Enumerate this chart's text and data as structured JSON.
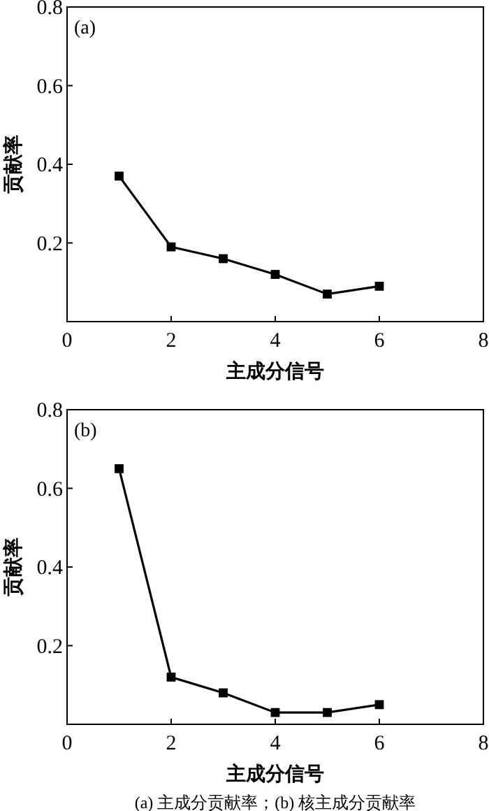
{
  "chart_data": [
    {
      "type": "line",
      "xlabel": "主成分信号",
      "ylabel": "贡献率",
      "annotations": [
        "(a)"
      ],
      "marker": "square",
      "line_style": "solid",
      "grid": false,
      "xlim": [
        0,
        8
      ],
      "xticks": [
        0,
        2,
        4,
        6,
        8
      ],
      "ylim": [
        0,
        0.8
      ],
      "yticks": [
        {
          "value": 0,
          "label": null
        },
        0.2,
        0.4,
        0.6,
        0.8
      ],
      "x": [
        1,
        2,
        3,
        4,
        5,
        6
      ],
      "series": [
        {
          "color": "#000000",
          "values": [
            0.37,
            0.19,
            0.16,
            0.12,
            0.07,
            0.09
          ]
        }
      ]
    },
    {
      "type": "line",
      "xlabel": "主成分信号",
      "ylabel": "贡献率",
      "annotations": [
        "(b)",
        "(a) 主成分贡献率；(b) 核主成分贡献率"
      ],
      "marker": "square",
      "line_style": "solid",
      "grid": false,
      "xlim": [
        0,
        8
      ],
      "xticks": [
        0,
        2,
        4,
        6,
        8
      ],
      "ylim": [
        0,
        0.8
      ],
      "yticks": [
        {
          "value": 0,
          "label": null
        },
        0.2,
        0.4,
        0.6,
        0.8
      ],
      "x": [
        1,
        2,
        3,
        4,
        5,
        6
      ],
      "series": [
        {
          "color": "#000000",
          "values": [
            0.65,
            0.12,
            0.08,
            0.03,
            0.03,
            0.05
          ]
        }
      ]
    }
  ]
}
